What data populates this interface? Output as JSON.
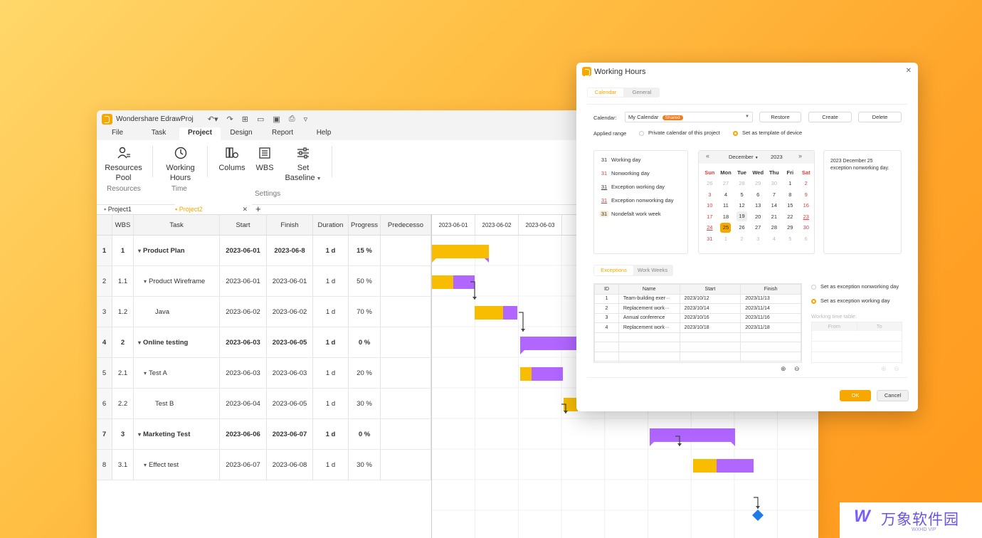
{
  "app": {
    "title": "Wondershare EdrawProj",
    "menus": [
      "File",
      "Task",
      "Project",
      "Design",
      "Report",
      "Help"
    ],
    "active_menu": "Project",
    "ribbon": {
      "resources_pool": "Resources\nPool",
      "working_hours": "Working\nHours",
      "colums": "Colums",
      "wbs": "WBS",
      "set_baseline": "Set\nBaseline",
      "group_resources": "Resources",
      "group_time": "Time",
      "group_settings": "Settings"
    },
    "doc_tabs": [
      "Project1",
      "Project2"
    ],
    "table": {
      "headers": [
        "",
        "WBS",
        "Task",
        "Start",
        "Finish",
        "Duration",
        "Progress",
        "Predecesso"
      ],
      "rows": [
        {
          "n": "1",
          "wbs": "1",
          "task": "Product Plan",
          "start": "2023-06-01",
          "finish": "2023-06-8",
          "dur": "1 d",
          "prog": "15 %",
          "bold": true,
          "level": 0,
          "caret": true
        },
        {
          "n": "2",
          "wbs": "1.1",
          "task": "Product Wireframe",
          "start": "2023-06-01",
          "finish": "2023-06-01",
          "dur": "1 d",
          "prog": "50 %",
          "bold": false,
          "level": 1,
          "caret": true
        },
        {
          "n": "3",
          "wbs": "1.2",
          "task": "Java",
          "start": "2023-06-02",
          "finish": "2023-06-02",
          "dur": "1 d",
          "prog": "70 %",
          "bold": false,
          "level": 2,
          "caret": false
        },
        {
          "n": "4",
          "wbs": "2",
          "task": "Online testing",
          "start": "2023-06-03",
          "finish": "2023-06-05",
          "dur": "1 d",
          "prog": "0 %",
          "bold": true,
          "level": 0,
          "caret": true
        },
        {
          "n": "5",
          "wbs": "2.1",
          "task": "Test A",
          "start": "2023-06-03",
          "finish": "2023-06-03",
          "dur": "1 d",
          "prog": "20 %",
          "bold": false,
          "level": 1,
          "caret": true
        },
        {
          "n": "6",
          "wbs": "2.2",
          "task": "Test B",
          "start": "2023-06-04",
          "finish": "2023-06-05",
          "dur": "1 d",
          "prog": "30 %",
          "bold": false,
          "level": 2,
          "caret": false
        },
        {
          "n": "7",
          "wbs": "3",
          "task": "Marketing Test",
          "start": "2023-06-06",
          "finish": "2023-06-07",
          "dur": "1 d",
          "prog": "0 %",
          "bold": true,
          "level": 0,
          "caret": true
        },
        {
          "n": "8",
          "wbs": "3.1",
          "task": "Effect test",
          "start": "2023-06-07",
          "finish": "2023-06-08",
          "dur": "1 d",
          "prog": "30 %",
          "bold": false,
          "level": 1,
          "caret": true
        }
      ]
    },
    "gantt_days": [
      "2023-06-01",
      "2023-06-02",
      "2023-06-03",
      "202"
    ]
  },
  "dialog": {
    "title": "Working Hours",
    "tabs": [
      "Calendar",
      "General"
    ],
    "calendar_label": "Calendar:",
    "calendar_value": "My Calendar",
    "shared_badge": "Shared",
    "restore": "Restore",
    "create": "Create",
    "delete": "Delete",
    "applied_range": "Applied range",
    "opt_private": "Private calendar of this project",
    "opt_template": "Set as template of device",
    "legend": [
      {
        "num": "31",
        "label": "Working day",
        "style": "normal"
      },
      {
        "num": "31",
        "label": "Nonworking day",
        "style": "red"
      },
      {
        "num": "31",
        "label": "Exception working day",
        "style": "under"
      },
      {
        "num": "31",
        "label": "Exception nonworking day",
        "style": "redunder"
      },
      {
        "num": "31",
        "label": "Nondefalt work week",
        "style": "shade"
      }
    ],
    "month": "December",
    "year": "2023",
    "weekdays": [
      "Sun",
      "Mon",
      "Tue",
      "Wed",
      "Thu",
      "Fri",
      "Sat"
    ],
    "weeks": [
      [
        "26",
        "27",
        "28",
        "29",
        "30",
        "1",
        "2"
      ],
      [
        "3",
        "4",
        "5",
        "6",
        "7",
        "8",
        "9"
      ],
      [
        "10",
        "11",
        "12",
        "13",
        "14",
        "15",
        "16"
      ],
      [
        "17",
        "18",
        "19",
        "20",
        "21",
        "22",
        "23"
      ],
      [
        "24",
        "25",
        "26",
        "27",
        "28",
        "29",
        "30"
      ],
      [
        "31",
        "1",
        "2",
        "3",
        "4",
        "5",
        "6"
      ]
    ],
    "info": "2023 December 25 exception nonworking day.",
    "sub_tabs": [
      "Exceptions",
      "Work Weeks"
    ],
    "exc_headers": [
      "ID",
      "Name",
      "Start",
      "Finish"
    ],
    "exceptions": [
      [
        "1",
        "Team-building exer···",
        "2023/10/12",
        "2023/11/13"
      ],
      [
        "2",
        "Replacement work···",
        "2023/10/14",
        "2023/11/14"
      ],
      [
        "3",
        "Annual conference",
        "2023/10/16",
        "2023/11/16"
      ],
      [
        "4",
        "Replacement work···",
        "2023/10/18",
        "2023/11/18"
      ]
    ],
    "opt_exc_nonworking": "Set as exception nonworking day",
    "opt_exc_working": "Set as exception working day",
    "working_time_table": "Working time table:",
    "from": "From",
    "to": "To",
    "ok": "OK",
    "cancel": "Cancel"
  },
  "watermark": {
    "brand": "万象软件园",
    "sub": "WXHD VIP"
  },
  "colors": {
    "accent": "#f6a800",
    "bar_yellow": "#f8bc00",
    "bar_purple": "#b066ff",
    "milestone": "#1e7be8"
  }
}
